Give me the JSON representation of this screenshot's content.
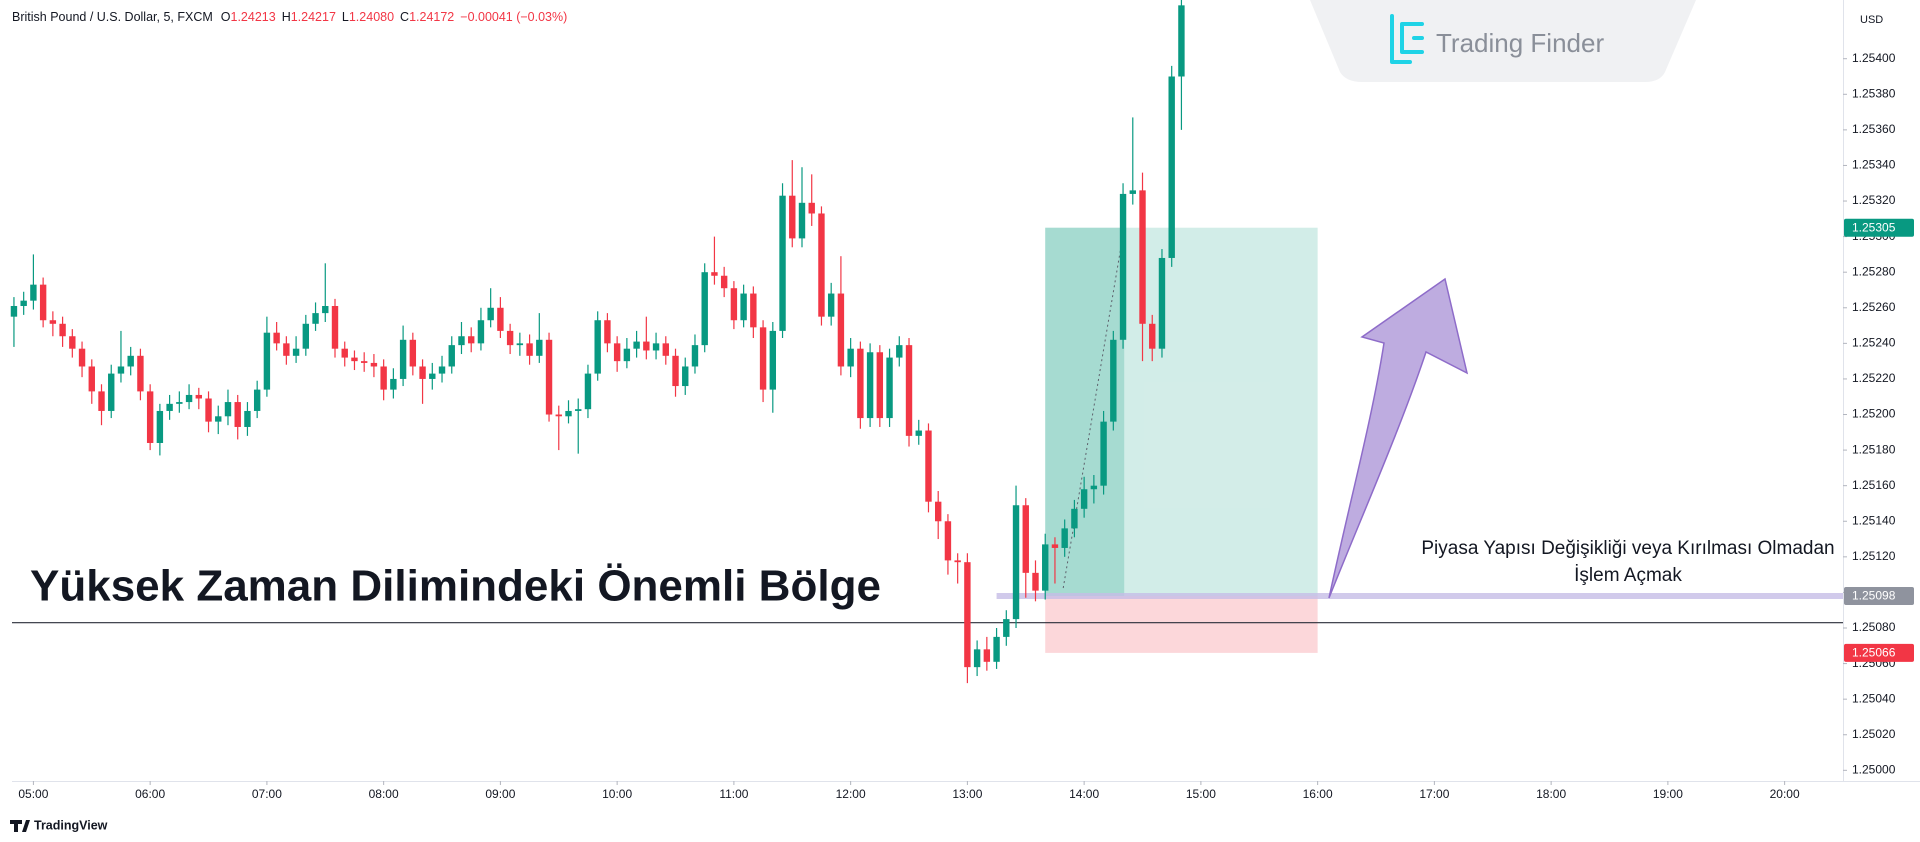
{
  "header": {
    "symbol": "British Pound / U.S. Dollar, 5, FXCM",
    "fields": [
      {
        "key": "O",
        "value": "1.24213"
      },
      {
        "key": "H",
        "value": "1.24217"
      },
      {
        "key": "L",
        "value": "1.24080"
      },
      {
        "key": "C",
        "value": "1.24172"
      }
    ],
    "change": "−0.00041 (−0.03%)",
    "currency": "USD",
    "logo": "Trading Finder",
    "brand": "TradingView"
  },
  "chart_data": {
    "type": "candlestick",
    "title": "Yüksek Zaman Dilimindeki Önemli Bölge",
    "annotation": [
      "Piyasa Yapısı Değişikliği veya Kırılması Olmadan",
      "İşlem Açmak"
    ],
    "up_color": "#089981",
    "down_color": "#f23645",
    "grid": false,
    "xlim": [
      289,
      1230
    ],
    "xticks": [
      {
        "value": 300,
        "label": "05:00"
      },
      {
        "value": 360,
        "label": "06:00"
      },
      {
        "value": 420,
        "label": "07:00"
      },
      {
        "value": 480,
        "label": "08:00"
      },
      {
        "value": 540,
        "label": "09:00"
      },
      {
        "value": 600,
        "label": "10:00"
      },
      {
        "value": 660,
        "label": "11:00"
      },
      {
        "value": 720,
        "label": "12:00"
      },
      {
        "value": 780,
        "label": "13:00"
      },
      {
        "value": 840,
        "label": "14:00"
      },
      {
        "value": 900,
        "label": "15:00"
      },
      {
        "value": 960,
        "label": "16:00"
      },
      {
        "value": 1020,
        "label": "17:00"
      },
      {
        "value": 1080,
        "label": "18:00"
      },
      {
        "value": 1140,
        "label": "19:00"
      },
      {
        "value": 1200,
        "label": "20:00"
      }
    ],
    "ylim": [
      1.24994,
      1.25433
    ],
    "yticks": [
      {
        "value": 1.25,
        "label": "1.25000"
      },
      {
        "value": 1.2502,
        "label": "1.25020"
      },
      {
        "value": 1.2504,
        "label": "1.25040"
      },
      {
        "value": 1.2506,
        "label": "1.25060"
      },
      {
        "value": 1.2508,
        "label": "1.25080"
      },
      {
        "value": 1.251,
        "label": "1.25100"
      },
      {
        "value": 1.2512,
        "label": "1.25120"
      },
      {
        "value": 1.2514,
        "label": "1.25140"
      },
      {
        "value": 1.2516,
        "label": "1.25160"
      },
      {
        "value": 1.2518,
        "label": "1.25180"
      },
      {
        "value": 1.252,
        "label": "1.25200"
      },
      {
        "value": 1.2522,
        "label": "1.25220"
      },
      {
        "value": 1.2524,
        "label": "1.25240"
      },
      {
        "value": 1.2526,
        "label": "1.25260"
      },
      {
        "value": 1.2528,
        "label": "1.25280"
      },
      {
        "value": 1.253,
        "label": "1.25300"
      },
      {
        "value": 1.2532,
        "label": "1.25320"
      },
      {
        "value": 1.2534,
        "label": "1.25340"
      },
      {
        "value": 1.2536,
        "label": "1.25360"
      },
      {
        "value": 1.2538,
        "label": "1.25380"
      },
      {
        "value": 1.254,
        "label": "1.25400"
      }
    ],
    "x": [
      290,
      295,
      300,
      305,
      310,
      315,
      320,
      325,
      330,
      335,
      340,
      345,
      350,
      355,
      360,
      365,
      370,
      375,
      380,
      385,
      390,
      395,
      400,
      405,
      410,
      415,
      420,
      425,
      430,
      435,
      440,
      445,
      450,
      455,
      460,
      465,
      470,
      475,
      480,
      485,
      490,
      495,
      500,
      505,
      510,
      515,
      520,
      525,
      530,
      535,
      540,
      545,
      550,
      555,
      560,
      565,
      570,
      575,
      580,
      585,
      590,
      595,
      600,
      605,
      610,
      615,
      620,
      625,
      630,
      635,
      640,
      645,
      650,
      655,
      660,
      665,
      670,
      675,
      680,
      685,
      690,
      695,
      700,
      705,
      710,
      715,
      720,
      725,
      730,
      735,
      740,
      745,
      750,
      755,
      760,
      765,
      770,
      775,
      780,
      785,
      790,
      795,
      800,
      805,
      810,
      815,
      820,
      825,
      830,
      835,
      840,
      845,
      850,
      855,
      860,
      865,
      870,
      875,
      880,
      885,
      890
    ],
    "open": [
      1.25255,
      1.25261,
      1.25264,
      1.25273,
      1.25253,
      1.25251,
      1.25244,
      1.25237,
      1.25227,
      1.25213,
      1.25202,
      1.25223,
      1.25227,
      1.25233,
      1.25213,
      1.25184,
      1.25202,
      1.25206,
      1.25207,
      1.25211,
      1.25209,
      1.25196,
      1.25199,
      1.25207,
      1.25193,
      1.25202,
      1.25214,
      1.25246,
      1.2524,
      1.25233,
      1.25237,
      1.25251,
      1.25257,
      1.25261,
      1.25237,
      1.25232,
      1.2523,
      1.25229,
      1.25227,
      1.25214,
      1.2522,
      1.25242,
      1.25227,
      1.2522,
      1.25223,
      1.25227,
      1.25239,
      1.25244,
      1.2524,
      1.25253,
      1.2526,
      1.25247,
      1.25239,
      1.2524,
      1.25233,
      1.25242,
      1.252,
      1.25199,
      1.25202,
      1.25203,
      1.25223,
      1.25253,
      1.2524,
      1.2523,
      1.25237,
      1.25241,
      1.25236,
      1.2524,
      1.25233,
      1.25216,
      1.25227,
      1.25239,
      1.2528,
      1.25278,
      1.25271,
      1.25253,
      1.25268,
      1.25249,
      1.25214,
      1.25247,
      1.25323,
      1.25299,
      1.25319,
      1.25313,
      1.25255,
      1.25268,
      1.25227,
      1.25237,
      1.25198,
      1.25235,
      1.25198,
      1.25232,
      1.25239,
      1.25188,
      1.25191,
      1.25151,
      1.2514,
      1.25118,
      1.25117,
      1.25058,
      1.25068,
      1.25061,
      1.25075,
      1.25085,
      1.25149,
      1.25111,
      1.25101,
      1.25127,
      1.25125,
      1.25136,
      1.25147,
      1.25158,
      1.2516,
      1.25196,
      1.25242,
      1.25324,
      1.25326,
      1.25251,
      1.25237,
      1.25288,
      1.2539
    ],
    "high": [
      1.25266,
      1.25269,
      1.2529,
      1.25277,
      1.25258,
      1.25255,
      1.25248,
      1.25241,
      1.25231,
      1.25217,
      1.25228,
      1.25247,
      1.25238,
      1.25237,
      1.25217,
      1.25206,
      1.25211,
      1.25213,
      1.25217,
      1.25215,
      1.25213,
      1.25205,
      1.25214,
      1.25211,
      1.25207,
      1.25219,
      1.25255,
      1.25252,
      1.25244,
      1.25244,
      1.25256,
      1.25263,
      1.25285,
      1.25265,
      1.25241,
      1.25236,
      1.25235,
      1.25234,
      1.25231,
      1.25226,
      1.2525,
      1.25246,
      1.25231,
      1.25229,
      1.25233,
      1.25244,
      1.25252,
      1.25249,
      1.2526,
      1.25271,
      1.25266,
      1.25251,
      1.25246,
      1.25245,
      1.25257,
      1.25246,
      1.25205,
      1.25208,
      1.25209,
      1.25228,
      1.25258,
      1.25257,
      1.25244,
      1.25243,
      1.25247,
      1.25255,
      1.25246,
      1.25244,
      1.25237,
      1.25232,
      1.25245,
      1.25285,
      1.253,
      1.25283,
      1.25275,
      1.25273,
      1.25272,
      1.25253,
      1.25252,
      1.2533,
      1.25343,
      1.25339,
      1.25335,
      1.25317,
      1.25274,
      1.25289,
      1.25243,
      1.25241,
      1.2524,
      1.25239,
      1.25237,
      1.25244,
      1.25243,
      1.25197,
      1.25195,
      1.25157,
      1.25144,
      1.25122,
      1.25122,
      1.25073,
      1.25075,
      1.2508,
      1.2509,
      1.2516,
      1.25153,
      1.25118,
      1.25133,
      1.25131,
      1.25141,
      1.25152,
      1.25165,
      1.25166,
      1.25202,
      1.25247,
      1.2533,
      1.25367,
      1.25336,
      1.25256,
      1.25293,
      1.25396,
      1.2544
    ],
    "low": [
      1.25238,
      1.25256,
      1.25259,
      1.25249,
      1.25244,
      1.25238,
      1.25232,
      1.25221,
      1.25206,
      1.25194,
      1.25198,
      1.25218,
      1.25222,
      1.25208,
      1.2518,
      1.25177,
      1.25197,
      1.25201,
      1.25203,
      1.25203,
      1.2519,
      1.25189,
      1.25194,
      1.25186,
      1.25188,
      1.25198,
      1.2521,
      1.25236,
      1.25228,
      1.25229,
      1.25233,
      1.25247,
      1.25252,
      1.25232,
      1.25227,
      1.25225,
      1.25224,
      1.25221,
      1.25208,
      1.25209,
      1.25216,
      1.25222,
      1.25206,
      1.25214,
      1.25218,
      1.25223,
      1.25234,
      1.25235,
      1.25236,
      1.25249,
      1.25243,
      1.25234,
      1.25233,
      1.25228,
      1.25229,
      1.25196,
      1.2518,
      1.25195,
      1.25178,
      1.25198,
      1.25219,
      1.25235,
      1.25224,
      1.25226,
      1.25232,
      1.25231,
      1.25231,
      1.25228,
      1.2521,
      1.25211,
      1.25223,
      1.25235,
      1.25273,
      1.25266,
      1.25248,
      1.25249,
      1.25243,
      1.25207,
      1.25201,
      1.25243,
      1.25294,
      1.25294,
      1.25306,
      1.2525,
      1.2525,
      1.25222,
      1.25221,
      1.25192,
      1.25193,
      1.25193,
      1.25193,
      1.25227,
      1.25182,
      1.25183,
      1.25145,
      1.2513,
      1.2511,
      1.25105,
      1.25049,
      1.25053,
      1.25056,
      1.25057,
      1.2507,
      1.2508,
      1.25097,
      1.25095,
      1.25096,
      1.25105,
      1.2512,
      1.25131,
      1.25142,
      1.2515,
      1.25155,
      1.25191,
      1.25237,
      1.25318,
      1.2523,
      1.2523,
      1.25232,
      1.25283,
      1.2536
    ],
    "close": [
      1.25261,
      1.25264,
      1.25273,
      1.25253,
      1.25251,
      1.25244,
      1.25237,
      1.25227,
      1.25213,
      1.25202,
      1.25223,
      1.25227,
      1.25233,
      1.25213,
      1.25184,
      1.25202,
      1.25206,
      1.25207,
      1.25211,
      1.25209,
      1.25196,
      1.25199,
      1.25207,
      1.25193,
      1.25202,
      1.25214,
      1.25246,
      1.2524,
      1.25233,
      1.25237,
      1.25251,
      1.25257,
      1.25261,
      1.25237,
      1.25232,
      1.2523,
      1.25229,
      1.25227,
      1.25214,
      1.2522,
      1.25242,
      1.25227,
      1.2522,
      1.25223,
      1.25227,
      1.25239,
      1.25244,
      1.2524,
      1.25253,
      1.2526,
      1.25247,
      1.25239,
      1.2524,
      1.25233,
      1.25242,
      1.252,
      1.25199,
      1.25202,
      1.25203,
      1.25223,
      1.25253,
      1.2524,
      1.2523,
      1.25237,
      1.25241,
      1.25236,
      1.2524,
      1.25233,
      1.25216,
      1.25227,
      1.25239,
      1.2528,
      1.25278,
      1.25271,
      1.25253,
      1.25268,
      1.25249,
      1.25214,
      1.25247,
      1.25323,
      1.25299,
      1.25319,
      1.25313,
      1.25255,
      1.25268,
      1.25227,
      1.25237,
      1.25198,
      1.25235,
      1.25198,
      1.25232,
      1.25239,
      1.25188,
      1.25191,
      1.25151,
      1.2514,
      1.25118,
      1.25117,
      1.25058,
      1.25068,
      1.25061,
      1.25075,
      1.25085,
      1.25149,
      1.25111,
      1.25101,
      1.25127,
      1.25125,
      1.25136,
      1.25147,
      1.25158,
      1.2516,
      1.25196,
      1.25242,
      1.25324,
      1.25326,
      1.25251,
      1.25237,
      1.25288,
      1.2539,
      1.2543
    ],
    "level": 1.25083,
    "position": {
      "x": [
        820,
        960
      ],
      "entry_line_start": 795,
      "entry": {
        "value": 1.25098,
        "label": "1.25098"
      },
      "target": {
        "value": 1.25305,
        "label": "1.25305"
      },
      "stop": {
        "value": 1.25066,
        "label": "1.25066"
      }
    }
  }
}
